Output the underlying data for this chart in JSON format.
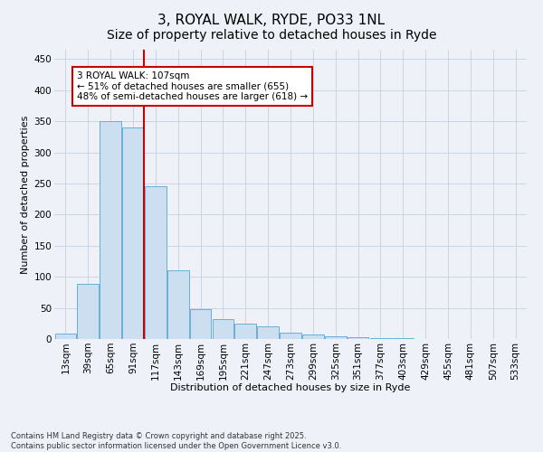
{
  "title1": "3, ROYAL WALK, RYDE, PO33 1NL",
  "title2": "Size of property relative to detached houses in Ryde",
  "xlabel": "Distribution of detached houses by size in Ryde",
  "ylabel": "Number of detached properties",
  "categories": [
    "13sqm",
    "39sqm",
    "65sqm",
    "91sqm",
    "117sqm",
    "143sqm",
    "169sqm",
    "195sqm",
    "221sqm",
    "247sqm",
    "273sqm",
    "299sqm",
    "325sqm",
    "351sqm",
    "377sqm",
    "403sqm",
    "429sqm",
    "455sqm",
    "481sqm",
    "507sqm",
    "533sqm"
  ],
  "values": [
    8,
    88,
    350,
    340,
    245,
    110,
    48,
    32,
    25,
    20,
    10,
    7,
    4,
    3,
    2,
    1,
    0,
    0,
    0,
    0,
    0
  ],
  "bar_color": "#ccdff0",
  "bar_edge_color": "#6aafd6",
  "vline_x_index": 4,
  "vline_color": "#cc0000",
  "annotation_text": "3 ROYAL WALK: 107sqm\n← 51% of detached houses are smaller (655)\n48% of semi-detached houses are larger (618) →",
  "annotation_box_edgecolor": "#cc0000",
  "annotation_facecolor": "white",
  "ylim_max": 465,
  "yticks": [
    0,
    50,
    100,
    150,
    200,
    250,
    300,
    350,
    400,
    450
  ],
  "footnote": "Contains HM Land Registry data © Crown copyright and database right 2025.\nContains public sector information licensed under the Open Government Licence v3.0.",
  "background_color": "#eef2f8",
  "grid_color": "#c5d0e0",
  "title1_fontsize": 11,
  "title2_fontsize": 10,
  "axis_label_fontsize": 8,
  "tick_fontsize": 7.5,
  "annotation_fontsize": 7.5,
  "footnote_fontsize": 6
}
